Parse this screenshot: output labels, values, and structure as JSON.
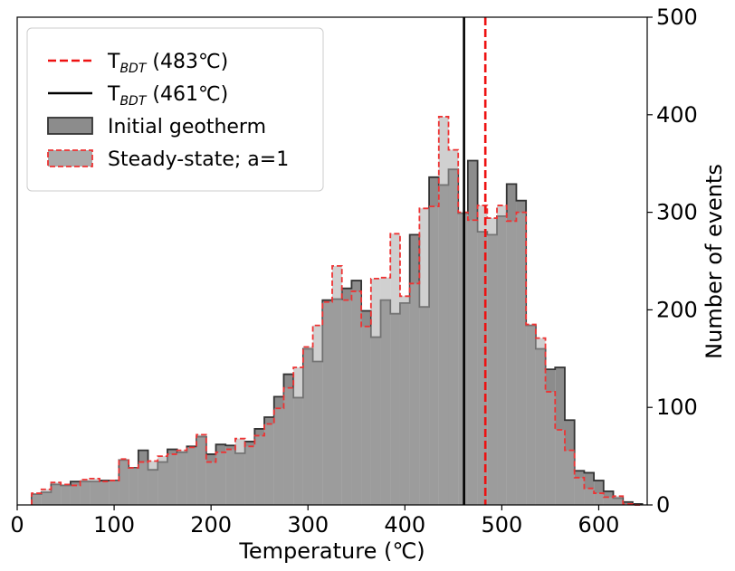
{
  "chart_data": {
    "type": "histogram",
    "xlabel": "Temperature (℃)",
    "ylabel": "Number of events",
    "xlim": [
      0,
      650
    ],
    "ylim": [
      0,
      500
    ],
    "xticks": [
      "0",
      "100",
      "200",
      "300",
      "400",
      "500",
      "600"
    ],
    "yticks": [
      "0",
      "100",
      "200",
      "300",
      "400",
      "500"
    ],
    "bin_width": 10,
    "bin_start": 15,
    "colors": {
      "initial_fill": "#8c8c8c",
      "initial_edge": "#333333",
      "steady_fill": "#aaaaaa",
      "steady_edge": "#ee3333",
      "tbdt_483": "#ee1111",
      "tbdt_461": "#000000"
    },
    "legend": {
      "placement": "upper-left",
      "entries": [
        {
          "key": "tbdt_483",
          "prefix": "T",
          "subscript": "BDT",
          "suffix": " (483℃)"
        },
        {
          "key": "tbdt_461",
          "prefix": "T",
          "subscript": "BDT",
          "suffix": " (461℃)"
        },
        {
          "key": "initial",
          "label": "Initial geotherm"
        },
        {
          "key": "steady",
          "label": "Steady-state; a=1"
        }
      ]
    },
    "vlines": [
      {
        "key": "tbdt_483",
        "x": 483,
        "style": "dashed"
      },
      {
        "key": "tbdt_461",
        "x": 461,
        "style": "solid"
      }
    ],
    "series": [
      {
        "name": "Initial geotherm",
        "values": [
          11,
          13,
          21,
          20,
          24,
          24,
          24,
          25,
          25,
          46,
          38,
          56,
          36,
          44,
          57,
          54,
          60,
          70,
          52,
          62,
          61,
          53,
          65,
          78,
          90,
          111,
          134,
          110,
          160,
          147,
          210,
          211,
          222,
          230,
          199,
          172,
          210,
          196,
          207,
          277,
          203,
          336,
          328,
          344,
          299,
          353,
          280,
          277,
          296,
          329,
          312,
          184,
          160,
          139,
          141,
          87,
          35,
          33,
          25,
          14,
          7,
          3,
          1
        ]
      },
      {
        "name": "Steady-state; a=1",
        "values": [
          12,
          16,
          23,
          21,
          20,
          26,
          27,
          24,
          25,
          47,
          38,
          44,
          45,
          50,
          52,
          56,
          59,
          72,
          44,
          54,
          57,
          68,
          60,
          71,
          83,
          99,
          120,
          141,
          162,
          184,
          208,
          245,
          210,
          219,
          183,
          232,
          233,
          278,
          214,
          227,
          304,
          306,
          398,
          364,
          300,
          292,
          307,
          294,
          307,
          291,
          300,
          185,
          171,
          116,
          77,
          56,
          28,
          17,
          12,
          8,
          9,
          1,
          0
        ]
      }
    ]
  }
}
